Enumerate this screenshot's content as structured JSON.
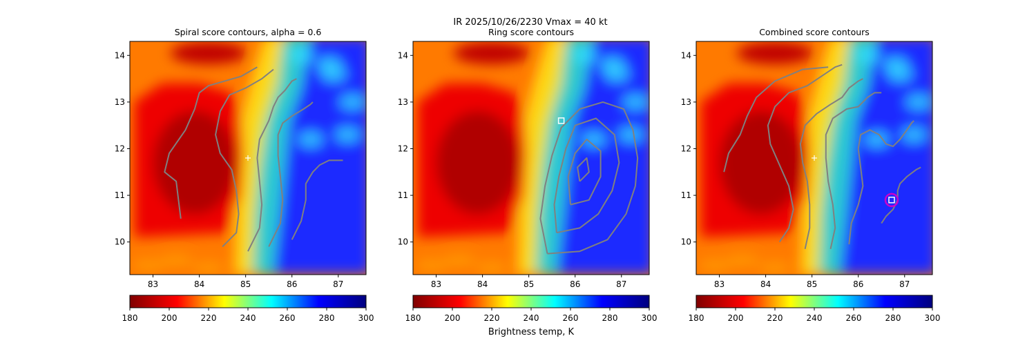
{
  "figure": {
    "suptitle": "IR  2025/10/26/2230    Vmax = 40 kt",
    "colorbar_label": "Brightness temp, K"
  },
  "colormap": {
    "name": "jet",
    "stops": [
      "#800000",
      "#ff0000",
      "#ffff00",
      "#00ffff",
      "#0000ff",
      "#00007f"
    ]
  },
  "chart_data": [
    {
      "type": "heatmap",
      "title": "Spiral score contours, alpha =  0.6",
      "xlim": [
        82.5,
        87.6
      ],
      "ylim": [
        9.3,
        14.3
      ],
      "xticks": [
        "83",
        "84",
        "85",
        "86",
        "87"
      ],
      "yticks": [
        "10",
        "11",
        "12",
        "13",
        "14"
      ],
      "colorbar": {
        "min": 180,
        "max": 300,
        "ticks": [
          "180",
          "200",
          "220",
          "240",
          "260",
          "280",
          "300"
        ]
      },
      "contour_color": "#808080",
      "markers": [
        {
          "kind": "center-plus",
          "lon": 85.05,
          "lat": 11.8,
          "color": "#ffffff"
        }
      ],
      "contours": [
        [
          [
            83.6,
            10.5
          ],
          [
            83.55,
            10.9
          ],
          [
            83.5,
            11.3
          ],
          [
            83.25,
            11.5
          ],
          [
            83.35,
            11.9
          ],
          [
            83.7,
            12.4
          ],
          [
            83.9,
            12.85
          ],
          [
            84.0,
            13.2
          ],
          [
            84.2,
            13.35
          ],
          [
            84.9,
            13.55
          ],
          [
            85.25,
            13.75
          ]
        ],
        [
          [
            84.5,
            9.9
          ],
          [
            84.8,
            10.2
          ],
          [
            84.85,
            10.6
          ],
          [
            84.8,
            11.1
          ],
          [
            84.7,
            11.55
          ],
          [
            84.45,
            11.9
          ],
          [
            84.35,
            12.3
          ],
          [
            84.45,
            12.8
          ],
          [
            84.65,
            13.15
          ],
          [
            85.0,
            13.3
          ],
          [
            85.35,
            13.5
          ],
          [
            85.6,
            13.7
          ]
        ],
        [
          [
            85.05,
            9.8
          ],
          [
            85.3,
            10.3
          ],
          [
            85.35,
            10.8
          ],
          [
            85.3,
            11.3
          ],
          [
            85.25,
            11.8
          ],
          [
            85.3,
            12.2
          ],
          [
            85.5,
            12.6
          ],
          [
            85.6,
            12.9
          ],
          [
            85.7,
            13.1
          ],
          [
            85.85,
            13.25
          ],
          [
            86.0,
            13.45
          ],
          [
            86.1,
            13.5
          ]
        ],
        [
          [
            85.5,
            9.9
          ],
          [
            85.75,
            10.4
          ],
          [
            85.8,
            10.9
          ],
          [
            85.75,
            11.4
          ],
          [
            85.7,
            11.85
          ],
          [
            85.7,
            12.3
          ],
          [
            85.8,
            12.55
          ],
          [
            86.0,
            12.7
          ],
          [
            86.25,
            12.85
          ],
          [
            86.4,
            12.95
          ],
          [
            86.45,
            13.0
          ]
        ],
        [
          [
            86.0,
            10.05
          ],
          [
            86.2,
            10.45
          ],
          [
            86.3,
            10.9
          ],
          [
            86.3,
            11.25
          ],
          [
            86.45,
            11.5
          ],
          [
            86.6,
            11.65
          ],
          [
            86.8,
            11.75
          ],
          [
            87.1,
            11.75
          ]
        ]
      ]
    },
    {
      "type": "heatmap",
      "title": "Ring score contours",
      "xlim": [
        82.5,
        87.6
      ],
      "ylim": [
        9.3,
        14.3
      ],
      "xticks": [
        "83",
        "84",
        "85",
        "86",
        "87"
      ],
      "yticks": [
        "10",
        "11",
        "12",
        "13",
        "14"
      ],
      "colorbar": {
        "min": 180,
        "max": 300,
        "ticks": [
          "180",
          "200",
          "220",
          "240",
          "260",
          "280",
          "300"
        ]
      },
      "contour_color": "#808080",
      "markers": [
        {
          "kind": "square",
          "lon": 85.7,
          "lat": 12.6,
          "color": "#ffffff"
        }
      ],
      "contours": [
        [
          [
            85.4,
            9.75
          ],
          [
            86.1,
            9.8
          ],
          [
            86.7,
            10.05
          ],
          [
            87.1,
            10.6
          ],
          [
            87.3,
            11.2
          ],
          [
            87.35,
            11.8
          ],
          [
            87.25,
            12.4
          ],
          [
            87.05,
            12.85
          ],
          [
            86.6,
            13.0
          ],
          [
            86.1,
            12.85
          ],
          [
            85.7,
            12.45
          ],
          [
            85.5,
            11.85
          ],
          [
            85.35,
            11.2
          ],
          [
            85.25,
            10.5
          ],
          [
            85.4,
            9.75
          ]
        ],
        [
          [
            85.6,
            10.2
          ],
          [
            86.1,
            10.3
          ],
          [
            86.5,
            10.6
          ],
          [
            86.8,
            11.1
          ],
          [
            86.95,
            11.7
          ],
          [
            86.85,
            12.3
          ],
          [
            86.45,
            12.65
          ],
          [
            86.0,
            12.5
          ],
          [
            85.8,
            12.0
          ],
          [
            85.65,
            11.4
          ],
          [
            85.55,
            10.8
          ],
          [
            85.6,
            10.2
          ]
        ],
        [
          [
            85.9,
            10.8
          ],
          [
            86.3,
            10.9
          ],
          [
            86.55,
            11.4
          ],
          [
            86.55,
            11.95
          ],
          [
            86.25,
            12.2
          ],
          [
            86.0,
            11.9
          ],
          [
            85.85,
            11.4
          ],
          [
            85.9,
            10.8
          ]
        ],
        [
          [
            86.1,
            11.3
          ],
          [
            86.3,
            11.5
          ],
          [
            86.25,
            11.8
          ],
          [
            86.05,
            11.6
          ],
          [
            86.1,
            11.3
          ]
        ]
      ]
    },
    {
      "type": "heatmap",
      "title": "Combined score contours",
      "xlim": [
        82.5,
        87.6
      ],
      "ylim": [
        9.3,
        14.3
      ],
      "xticks": [
        "83",
        "84",
        "85",
        "86",
        "87"
      ],
      "yticks": [
        "10",
        "11",
        "12",
        "13",
        "14"
      ],
      "colorbar": {
        "min": 180,
        "max": 300,
        "ticks": [
          "180",
          "200",
          "220",
          "240",
          "260",
          "280",
          "300"
        ]
      },
      "contour_color": "#808080",
      "markers": [
        {
          "kind": "center-plus",
          "lon": 85.05,
          "lat": 11.8,
          "color": "#ffffff"
        },
        {
          "kind": "circle",
          "lon": 86.72,
          "lat": 10.9,
          "color": "#cc00cc"
        },
        {
          "kind": "square",
          "lon": 86.72,
          "lat": 10.9,
          "color": "#ffffff"
        }
      ],
      "contours": [
        [
          [
            83.1,
            11.5
          ],
          [
            83.2,
            11.9
          ],
          [
            83.45,
            12.3
          ],
          [
            83.6,
            12.7
          ],
          [
            83.8,
            13.1
          ],
          [
            84.2,
            13.45
          ],
          [
            84.8,
            13.7
          ],
          [
            85.35,
            13.75
          ]
        ],
        [
          [
            84.3,
            10.0
          ],
          [
            84.5,
            10.3
          ],
          [
            84.6,
            10.7
          ],
          [
            84.5,
            11.2
          ],
          [
            84.3,
            11.65
          ],
          [
            84.1,
            12.1
          ],
          [
            84.05,
            12.5
          ],
          [
            84.2,
            12.9
          ],
          [
            84.5,
            13.2
          ],
          [
            84.9,
            13.35
          ],
          [
            85.2,
            13.55
          ],
          [
            85.5,
            13.75
          ],
          [
            85.65,
            13.8
          ]
        ],
        [
          [
            84.85,
            9.85
          ],
          [
            84.95,
            10.3
          ],
          [
            84.95,
            10.8
          ],
          [
            84.9,
            11.3
          ],
          [
            84.8,
            11.7
          ],
          [
            84.75,
            12.1
          ],
          [
            84.85,
            12.5
          ],
          [
            85.1,
            12.75
          ],
          [
            85.4,
            12.95
          ],
          [
            85.65,
            13.1
          ],
          [
            85.8,
            13.3
          ],
          [
            86.0,
            13.45
          ],
          [
            86.1,
            13.5
          ]
        ],
        [
          [
            85.4,
            9.85
          ],
          [
            85.5,
            10.3
          ],
          [
            85.45,
            10.8
          ],
          [
            85.35,
            11.3
          ],
          [
            85.3,
            11.8
          ],
          [
            85.3,
            12.3
          ],
          [
            85.45,
            12.65
          ],
          [
            85.75,
            12.85
          ],
          [
            86.0,
            12.9
          ],
          [
            86.2,
            13.1
          ],
          [
            86.35,
            13.2
          ],
          [
            86.5,
            13.2
          ]
        ],
        [
          [
            85.8,
            9.95
          ],
          [
            85.85,
            10.4
          ],
          [
            86.0,
            10.8
          ],
          [
            86.1,
            11.2
          ],
          [
            86.05,
            11.6
          ],
          [
            86.0,
            12.0
          ],
          [
            86.05,
            12.3
          ],
          [
            86.25,
            12.4
          ],
          [
            86.45,
            12.3
          ],
          [
            86.6,
            12.1
          ],
          [
            86.75,
            12.05
          ],
          [
            86.9,
            12.2
          ],
          [
            87.05,
            12.4
          ],
          [
            87.15,
            12.55
          ],
          [
            87.2,
            12.6
          ]
        ],
        [
          [
            86.5,
            10.4
          ],
          [
            86.6,
            10.55
          ],
          [
            86.75,
            10.7
          ],
          [
            86.85,
            10.9
          ],
          [
            86.85,
            11.1
          ],
          [
            86.9,
            11.25
          ],
          [
            87.05,
            11.4
          ],
          [
            87.25,
            11.55
          ],
          [
            87.35,
            11.6
          ]
        ]
      ]
    }
  ]
}
